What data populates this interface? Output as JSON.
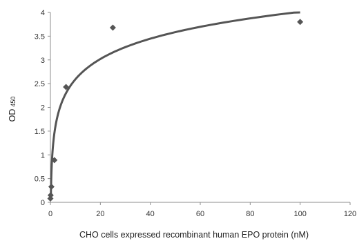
{
  "chart_data": {
    "type": "scatter",
    "title": "",
    "xlabel": "CHO cells expressed recombinant human EPO protein (nM)",
    "ylabel_main": "OD",
    "ylabel_sub": "450",
    "xlim": [
      0,
      120
    ],
    "ylim": [
      0,
      4
    ],
    "xticks": [
      "0",
      "20",
      "40",
      "60",
      "80",
      "100",
      "120"
    ],
    "yticks": [
      "0",
      "0.5",
      "1",
      "1.5",
      "2",
      "2.5",
      "3",
      "3.5",
      "4"
    ],
    "grid": false,
    "legend": "none",
    "series": [
      {
        "marker": "diamond",
        "color": "#555555",
        "x": [
          0,
          0.1,
          0.4,
          1.6,
          6.25,
          25,
          100
        ],
        "y": [
          0.08,
          0.15,
          0.33,
          0.89,
          2.43,
          3.68,
          3.8
        ]
      }
    ],
    "trendline": {
      "type": "logarithmic",
      "color": "#555555",
      "x_range": [
        0.2,
        100
      ]
    }
  }
}
